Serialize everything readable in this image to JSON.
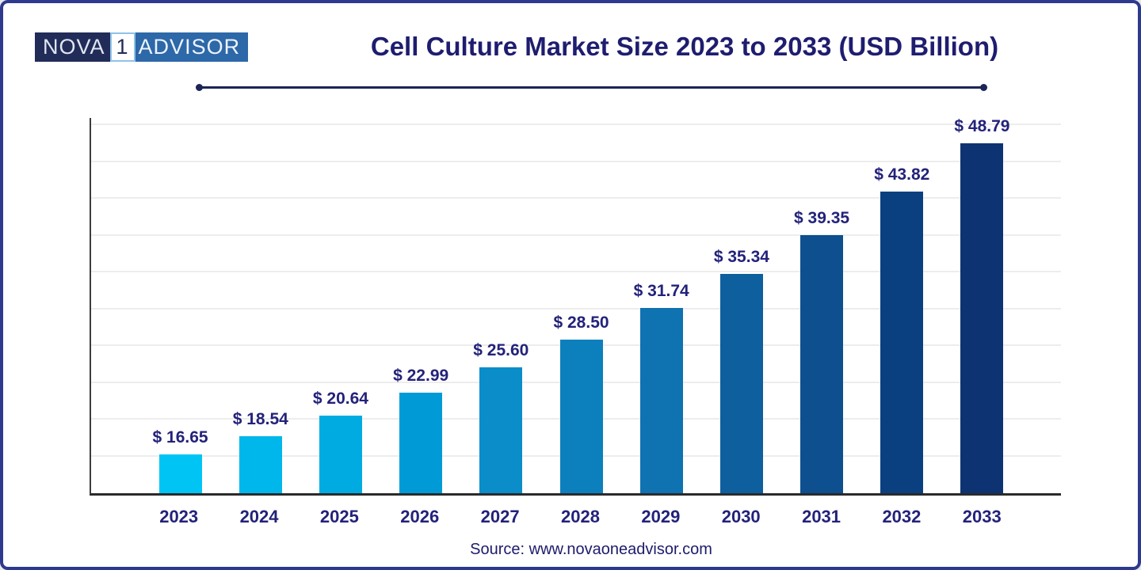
{
  "page": {
    "background": "#ffffff",
    "border_color": "#2e3a8e"
  },
  "logo": {
    "left": "NOVA",
    "middle": "1",
    "right": "ADVISOR",
    "left_bg": "#222c58",
    "right_bg": "#2d68a8"
  },
  "header": {
    "title": "Cell Culture Market Size 2023 to 2033 (USD Billion)"
  },
  "chart_data": {
    "type": "bar",
    "title": "Cell Culture Market Size 2023 to 2033 (USD Billion)",
    "categories": [
      "2023",
      "2024",
      "2025",
      "2026",
      "2027",
      "2028",
      "2029",
      "2030",
      "2031",
      "2032",
      "2033"
    ],
    "values": [
      16.65,
      18.54,
      20.64,
      22.99,
      25.6,
      28.5,
      31.74,
      35.34,
      39.35,
      43.82,
      48.79
    ],
    "value_labels": [
      "$ 16.65",
      "$ 18.54",
      "$ 20.64",
      "$ 22.99",
      "$ 25.60",
      "$ 28.50",
      "$ 31.74",
      "$ 35.34",
      "$ 39.35",
      "$ 43.82",
      "$ 48.79"
    ],
    "bar_colors": [
      "#00C5F4",
      "#00B7EB",
      "#00ABE2",
      "#009BD7",
      "#0A8DC9",
      "#0C80BC",
      "#0F72B1",
      "#0D5F9E",
      "#0D4F8F",
      "#0B4080",
      "#0D3372"
    ],
    "unit": "USD Billion",
    "xlabel": "",
    "ylabel": "",
    "legend": "none",
    "grid": "horizontal-light",
    "gridline_color": "#ededed",
    "axis_color": "#2b2b2b",
    "label_color": "#23227a"
  },
  "footer": {
    "source": "Source: www.novaoneadvisor.com"
  }
}
